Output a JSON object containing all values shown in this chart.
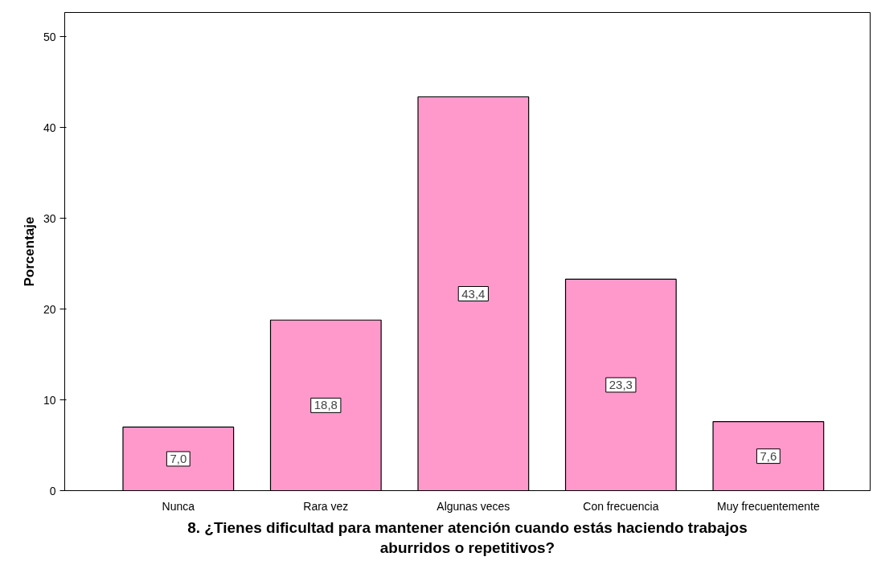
{
  "chart_data": {
    "type": "bar",
    "xlabel": "8. ¿Tienes dificultad para mantener atención cuando estás haciendo trabajos\naburridos o repetitivos?",
    "ylabel": "Porcentaje",
    "categories": [
      "Nunca",
      "Rara vez",
      "Algunas veces",
      "Con frecuencia",
      "Muy frecuentemente"
    ],
    "values": [
      7.0,
      18.8,
      43.4,
      23.3,
      7.6
    ],
    "value_labels": [
      "7,0",
      "18,8",
      "43,4",
      "23,3",
      "7,6"
    ],
    "color": "#ff99cc",
    "ylim": [
      0,
      52.7
    ],
    "yticks": [
      0,
      10,
      20,
      30,
      40,
      50
    ],
    "grid": false
  }
}
